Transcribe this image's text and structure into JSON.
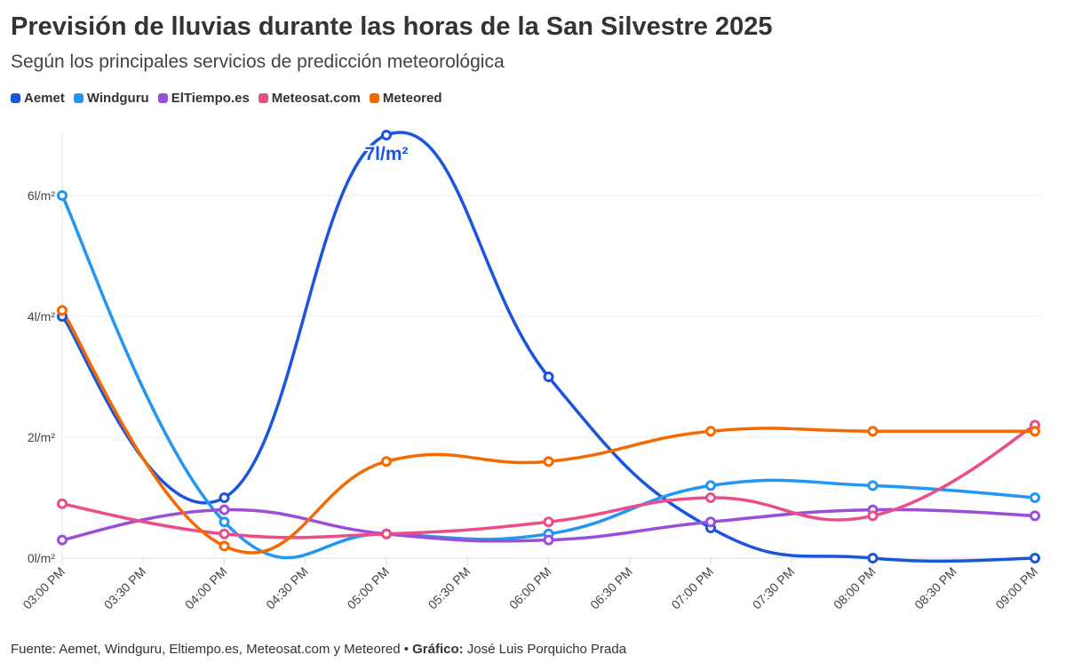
{
  "title": "Previsión de lluvias durante las horas de la San Silvestre 2025",
  "subtitle": "Según los principales servicios de predicción meteorológica",
  "footer": {
    "source": "Fuente: Aemet, Windguru, Eltiempo.es, Meteosat.com y Meteored • ",
    "credit_label": "Gráfico:",
    "credit": " José Luis Porquicho Prada"
  },
  "chart_data": {
    "type": "line",
    "x": [
      "03:00 PM",
      "04:00 PM",
      "05:00 PM",
      "06:00 PM",
      "07:00 PM",
      "08:00 PM",
      "09:00 PM"
    ],
    "xticks": [
      "03:00 PM",
      "03:30 PM",
      "04:00 PM",
      "04:30 PM",
      "05:00 PM",
      "05:30 PM",
      "06:00 PM",
      "06:30 PM",
      "07:00 PM",
      "07:30 PM",
      "08:00 PM",
      "08:30 PM",
      "09:00 PM"
    ],
    "yticks": [
      "0l/m²",
      "2l/m²",
      "4l/m²",
      "6l/m²"
    ],
    "ylim": [
      0,
      7
    ],
    "grid": true,
    "legend": "top-left",
    "series": [
      {
        "name": "Aemet",
        "color": "#1a56db",
        "values": [
          4,
          1,
          7,
          3,
          0.5,
          0,
          0
        ]
      },
      {
        "name": "Windguru",
        "color": "#2196f3",
        "values": [
          6,
          0.6,
          0.4,
          0.4,
          1.2,
          1.2,
          1.0
        ]
      },
      {
        "name": "ElTiempo.es",
        "color": "#9b4fd9",
        "values": [
          0.3,
          0.8,
          0.4,
          0.3,
          0.6,
          0.8,
          0.7
        ]
      },
      {
        "name": "Meteosat.com",
        "color": "#ec4c8a",
        "values": [
          0.9,
          0.4,
          0.4,
          0.6,
          1.0,
          0.7,
          2.2
        ]
      },
      {
        "name": "Meteored",
        "color": "#f56a00",
        "values": [
          4.1,
          0.2,
          1.6,
          1.6,
          2.1,
          2.1,
          2.1
        ]
      }
    ],
    "annotation": {
      "label": "7l/m²",
      "series": "Aemet",
      "x": "05:00 PM"
    }
  }
}
